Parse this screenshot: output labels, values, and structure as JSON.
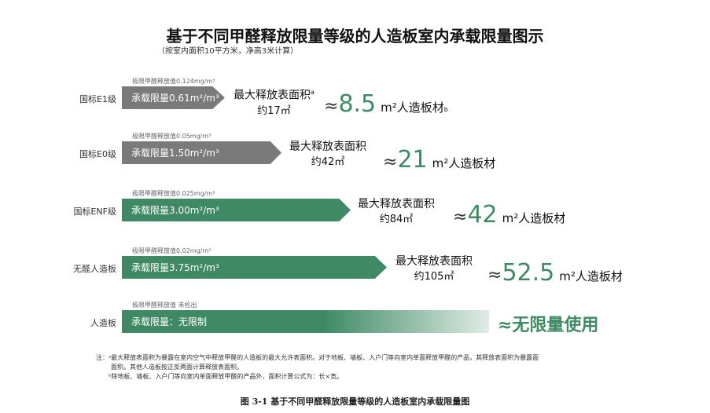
{
  "title": "基于不同甲醛释放限量等级的人造板室内承载限量图示",
  "subtitle": "（按室内面积10平方米，净高3米计算）",
  "colors": {
    "gray_bar": "#7a7a7a",
    "green_bar": "#3f8a65",
    "value_green": "#3e8a65"
  },
  "rows": [
    {
      "label": "国标E1级",
      "limit": "极限甲醛释放值0.124mg/m³",
      "bar": "承载限量0.61m²/m³",
      "max_area_label": "最大释放表面积",
      "max_area_sup": "a",
      "max_area": "约17㎡",
      "approx": "≈",
      "value": "8.5",
      "unit": "m²人造板材",
      "unit_sup": "b",
      "bar_color": "#7a7a7a"
    },
    {
      "label": "国标E0级",
      "limit": "极限甲醛释放值0.05mg/m³",
      "bar": "承载限量1.50m²/m³",
      "max_area_label": "最大释放表面积",
      "max_area": "约42㎡",
      "approx": "≈",
      "value": "21",
      "unit": "m²人造板材",
      "bar_color": "#7a7a7a"
    },
    {
      "label": "国标ENF级",
      "limit": "极限甲醛释放值0.025mg/m³",
      "bar": "承载限量3.00m²/m³",
      "max_area_label": "最大释放表面积",
      "max_area": "约84㎡",
      "approx": "≈",
      "value": "42",
      "unit": "m²人造板材",
      "bar_color": "#3f8a65"
    },
    {
      "label": "无醛人造板",
      "limit": "极限甲醛释放值0.02mg/m³",
      "bar": "承载限量3.75m²/m³",
      "max_area_label": "最大释放表面积",
      "max_area": "约105㎡",
      "approx": "≈",
      "value": "52.5",
      "unit": "m²人造板材",
      "bar_color": "#3f8a65"
    },
    {
      "label": "人造板",
      "limit": "极限甲醛释放值 未检出",
      "bar": "承载限量：无限制",
      "result": "≈无限量使用",
      "bar_color": "#3f8a65"
    }
  ],
  "notes": [
    "注：ᵃ最大释放表面积为暴露在室内空气中释放甲醛的人造板的最大允许表面积。对于地板、墙板、入户门等向室内单面释放甲醛的产品，其释放表面积为暴露面",
    "面积。其他人造板按正反两面计算释放表面积。",
    "ᵇ除地板、墙板、入户门等向室内单面释放甲醛的产品外，面积计算公式为：长×宽。"
  ],
  "caption": "图 3-1  基于不同甲醛释放限量等级的人造板室内承载限量图"
}
